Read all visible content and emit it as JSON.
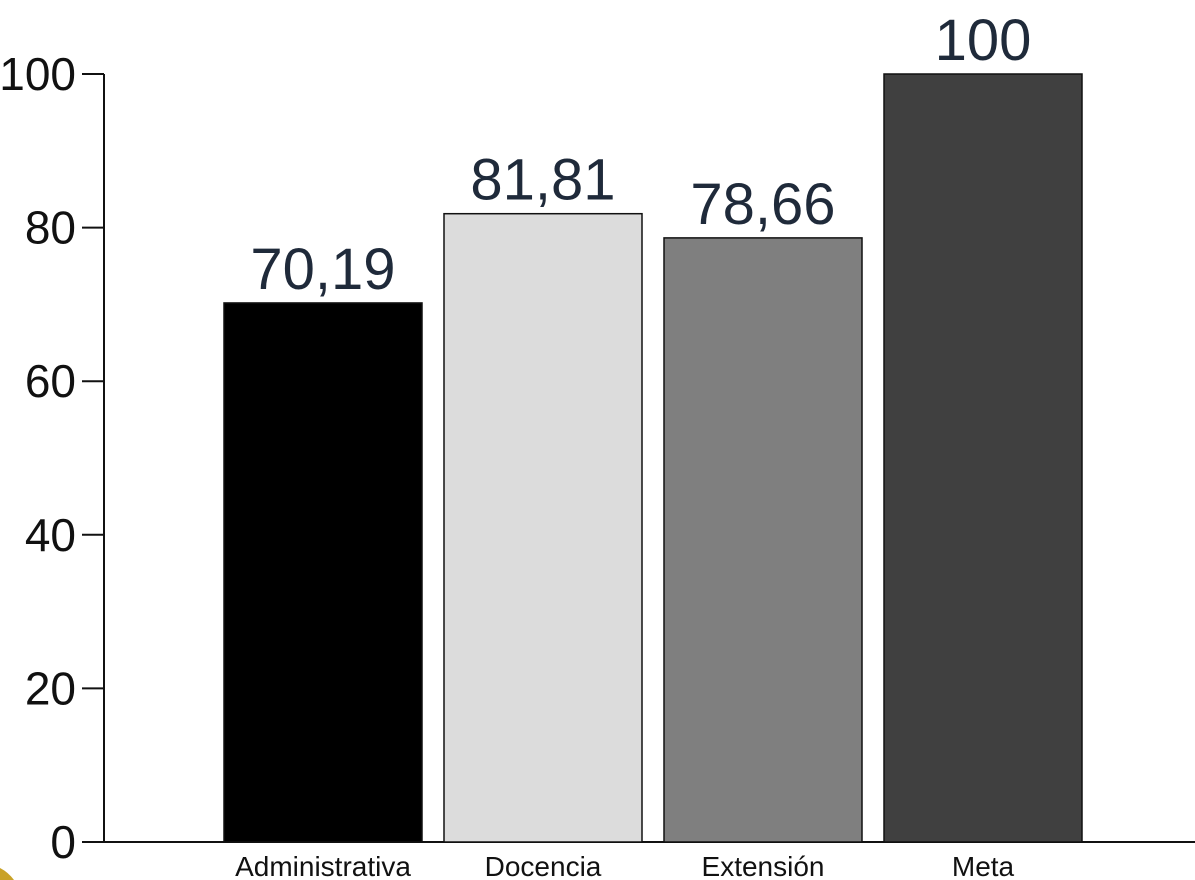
{
  "chart_data": {
    "type": "bar",
    "categories": [
      "Administrativa",
      "Docencia",
      "Extensión",
      "Meta"
    ],
    "values": [
      70.19,
      81.81,
      78.66,
      100
    ],
    "value_labels": [
      "70,19",
      "81,81",
      "78,66",
      "100"
    ],
    "bar_colors": [
      "#000000",
      "#dcdcdc",
      "#7f7f7f",
      "#404040"
    ],
    "title": "",
    "xlabel": "",
    "ylabel": "",
    "ylim": [
      0,
      100
    ],
    "yticks": [
      0,
      20,
      40,
      60,
      80,
      100
    ],
    "ytick_labels": [
      "0",
      "20",
      "40",
      "60",
      "80",
      "100"
    ],
    "grid": false,
    "legend": "none"
  }
}
